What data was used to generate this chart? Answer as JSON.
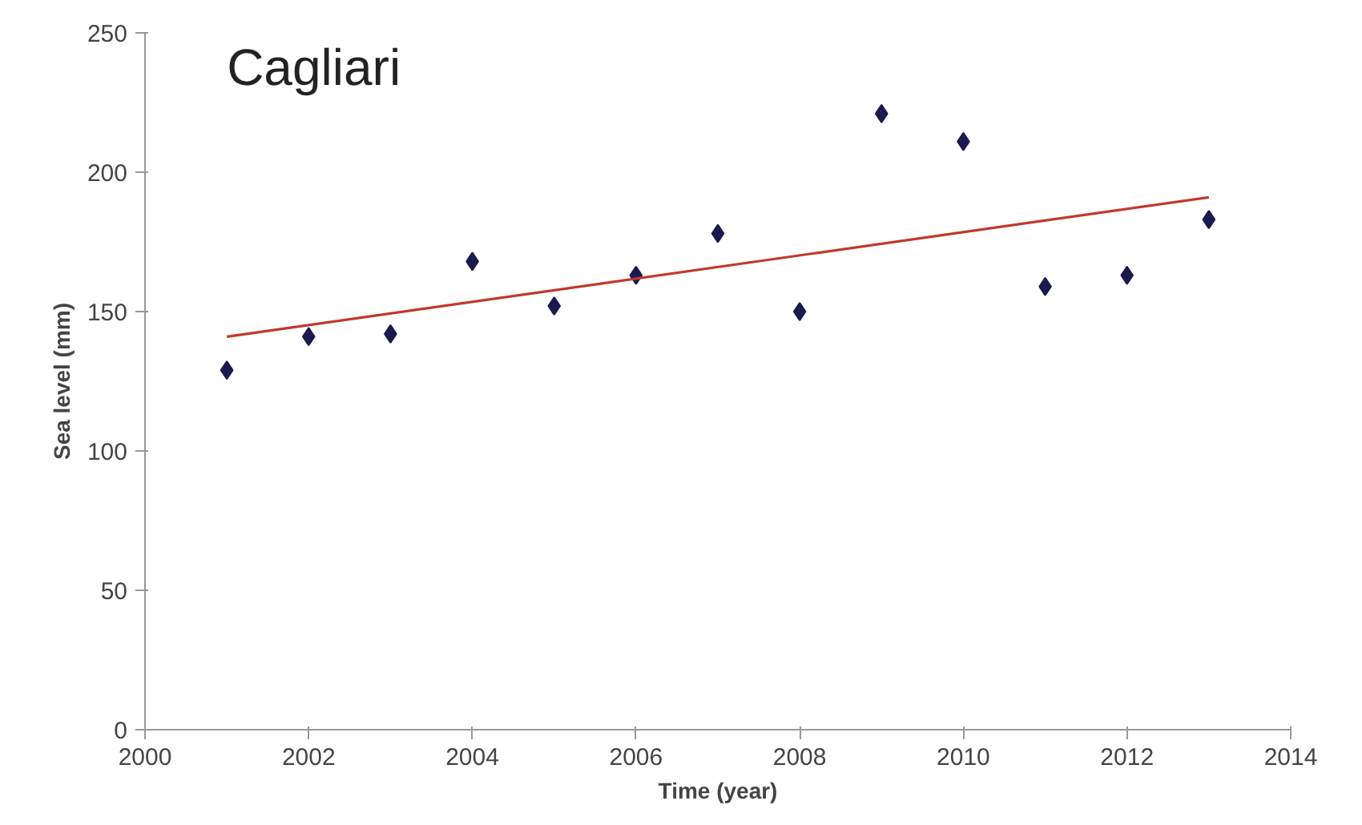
{
  "chart_data": {
    "type": "scatter",
    "title": "Cagliari",
    "xlabel": "Time (year)",
    "ylabel": "Sea level (mm)",
    "x": [
      2001,
      2002,
      2003,
      2004,
      2005,
      2006,
      2007,
      2008,
      2009,
      2010,
      2011,
      2012,
      2013
    ],
    "series": [
      {
        "color": "#1a1a4e",
        "marker": "diamond",
        "values": [
          129,
          141,
          142,
          168,
          152,
          163,
          178,
          150,
          221,
          211,
          159,
          163,
          183
        ]
      },
      {
        "type": "line",
        "color": "#c0392b",
        "x": [
          2001,
          2013
        ],
        "values": [
          141,
          191
        ],
        "line_style": "solid",
        "marker": "none"
      }
    ],
    "xlim": [
      2000,
      2014
    ],
    "xticks": [
      2000,
      2002,
      2004,
      2006,
      2008,
      2010,
      2012,
      2014
    ],
    "ylim": [
      0,
      250
    ],
    "yticks": [
      0,
      50,
      100,
      150,
      200,
      250
    ],
    "grid": false
  }
}
